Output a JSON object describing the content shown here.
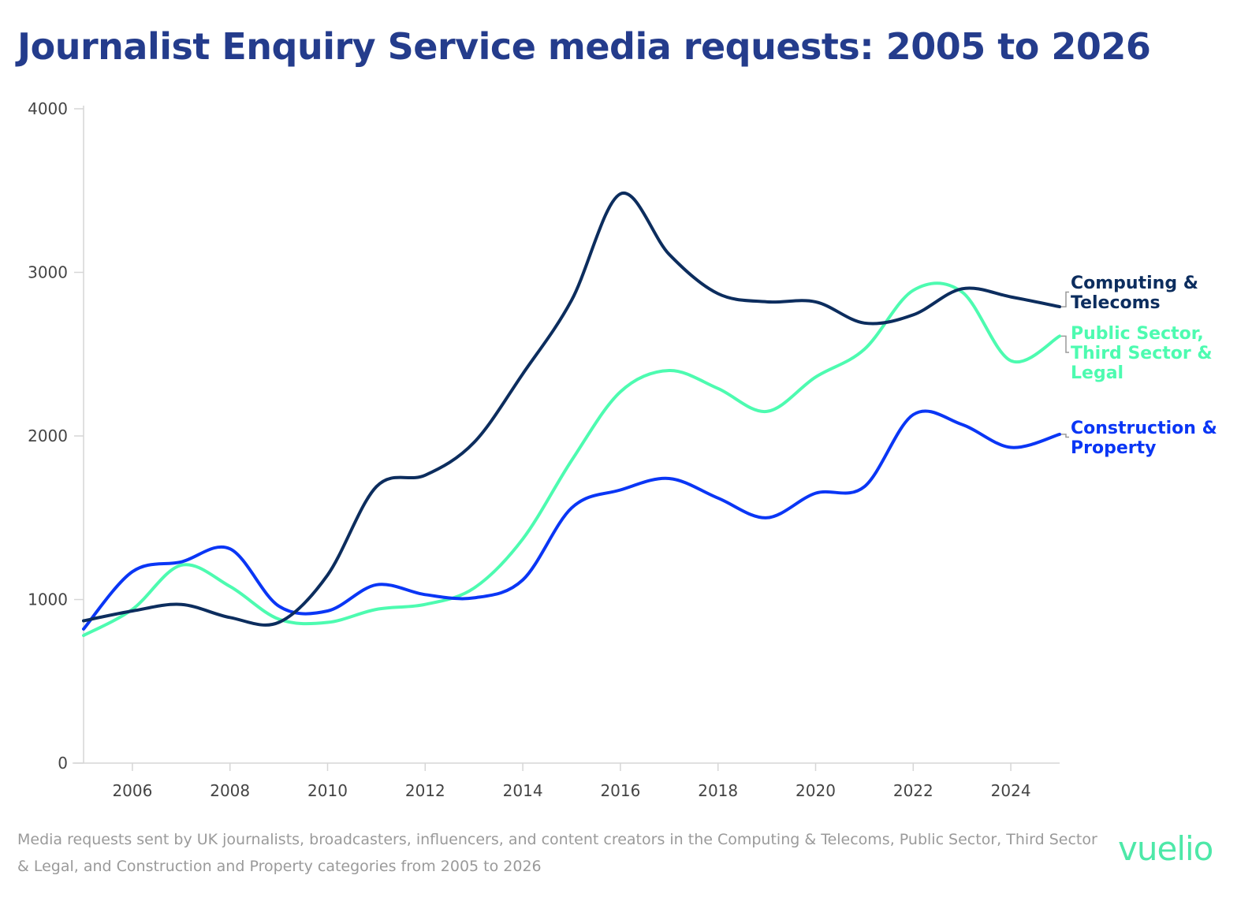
{
  "chart_data": {
    "type": "line",
    "title": "Journalist Enquiry Service media requests: 2005 to 2026",
    "x": [
      2005,
      2006,
      2007,
      2008,
      2009,
      2010,
      2011,
      2012,
      2013,
      2014,
      2015,
      2016,
      2017,
      2018,
      2019,
      2020,
      2021,
      2022,
      2023,
      2024,
      2025
    ],
    "x_tick_labels": [
      "2006",
      "2008",
      "2010",
      "2012",
      "2014",
      "2016",
      "2018",
      "2020",
      "2022",
      "2024"
    ],
    "y_tick_labels": [
      "0",
      "1000",
      "2000",
      "3000",
      "4000"
    ],
    "xlim": [
      2005,
      2025
    ],
    "ylim": [
      0,
      4000
    ],
    "grid": false,
    "legend": "direct labels at right end of lines",
    "series": [
      {
        "name": "Computing & Telecoms",
        "label_lines": [
          "Computing &",
          "Telecoms"
        ],
        "color": "#0c2d5e",
        "values": [
          870,
          930,
          970,
          890,
          860,
          1150,
          1690,
          1760,
          1960,
          2380,
          2830,
          3480,
          3110,
          2870,
          2820,
          2820,
          2690,
          2740,
          2900,
          2850,
          2790
        ]
      },
      {
        "name": "Public Sector, Third Sector & Legal",
        "label_lines": [
          "Public Sector,",
          "Third Sector &",
          "Legal"
        ],
        "color": "#4dfbb0",
        "values": [
          780,
          940,
          1210,
          1080,
          880,
          860,
          940,
          970,
          1070,
          1370,
          1850,
          2270,
          2400,
          2290,
          2150,
          2360,
          2530,
          2890,
          2880,
          2460,
          2610
        ]
      },
      {
        "name": "Construction & Property",
        "label_lines": [
          "Construction &",
          "Property"
        ],
        "color": "#0a36f5",
        "values": [
          820,
          1170,
          1230,
          1310,
          960,
          930,
          1090,
          1030,
          1010,
          1120,
          1560,
          1670,
          1740,
          1620,
          1500,
          1650,
          1690,
          2130,
          2070,
          1930,
          2010
        ]
      }
    ]
  },
  "footnote": "Media requests sent by UK journalists, broadcasters, influencers, and content creators in the Computing & Telecoms, Public Sector, Third Sector & Legal, and Construction and Property categories from 2005 to 2026",
  "logo": "vuelio"
}
